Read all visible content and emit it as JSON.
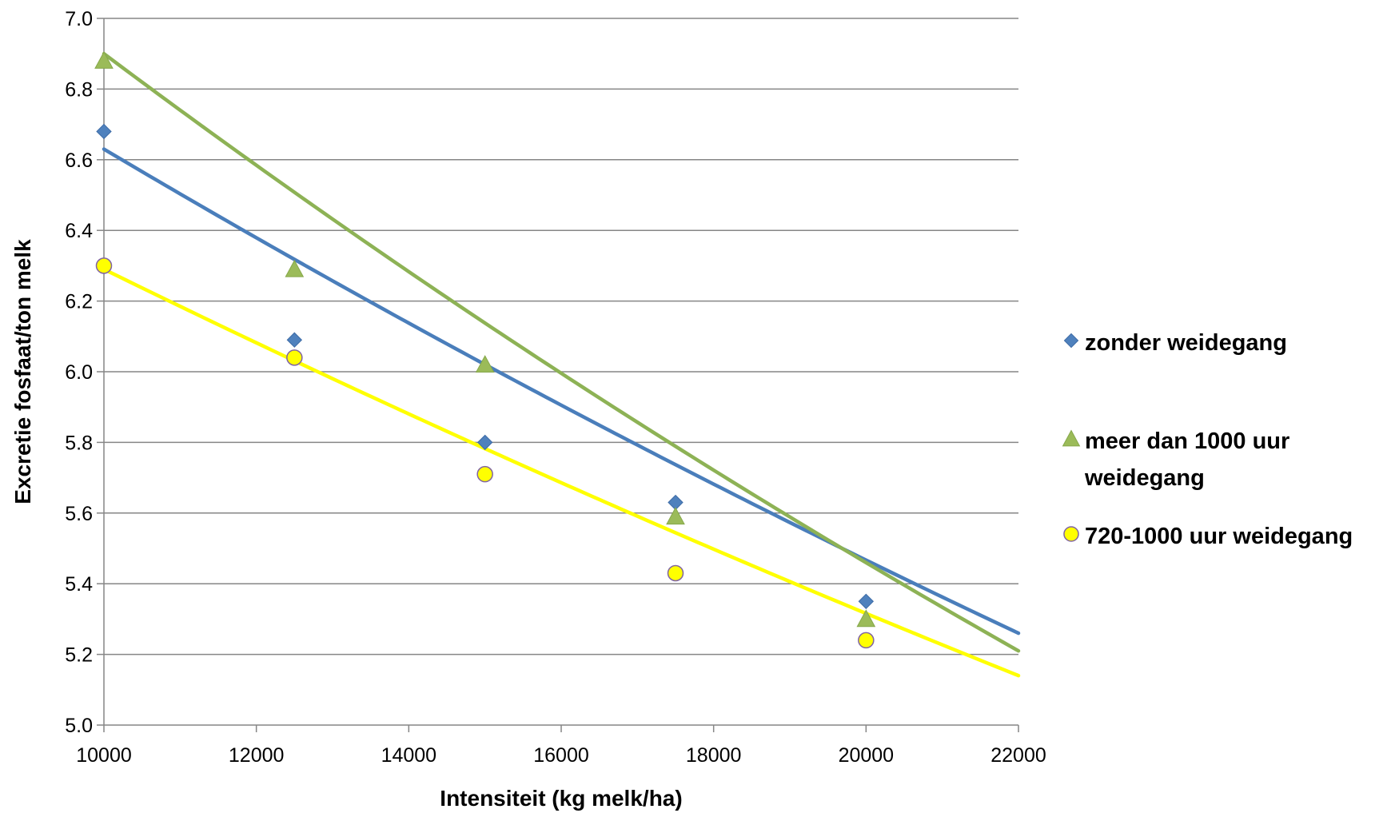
{
  "chart_data": {
    "type": "scatter",
    "title": "",
    "xlabel": "Intensiteit (kg melk/ha)",
    "ylabel": "Excretie fosfaat/ton melk",
    "xlim": [
      10000,
      22000
    ],
    "ylim": [
      5.0,
      7.0
    ],
    "x_ticks": [
      "10000",
      "12000",
      "14000",
      "16000",
      "18000",
      "20000",
      "22000"
    ],
    "y_ticks": [
      "5.0",
      "5.2",
      "5.4",
      "5.6",
      "5.8",
      "6.0",
      "6.2",
      "6.4",
      "6.6",
      "6.8",
      "7.0"
    ],
    "grid": "horizontal",
    "legend_position": "right",
    "series": [
      {
        "name": "zonder weidegang",
        "marker": "diamond",
        "color": "#4F81BD",
        "trend_color": "#4A7EBB",
        "x": [
          10000,
          12500,
          15000,
          17500,
          20000
        ],
        "y": [
          6.68,
          6.09,
          5.8,
          5.63,
          5.35
        ],
        "trendline": {
          "x": [
            10000,
            22000
          ],
          "y": [
            6.63,
            5.26
          ]
        }
      },
      {
        "name": "meer dan 1000 uur weidegang",
        "legend_lines": [
          "meer dan 1000 uur",
          "weidegang"
        ],
        "marker": "triangle",
        "color": "#9BBB59",
        "trend_color": "#8DB255",
        "x": [
          10000,
          12500,
          15000,
          17500,
          20000
        ],
        "y": [
          6.88,
          6.29,
          6.02,
          5.59,
          5.3
        ],
        "trendline": {
          "x": [
            10000,
            22000
          ],
          "y": [
            6.9,
            5.21
          ]
        }
      },
      {
        "name": "720-1000 uur weidegang",
        "marker": "circle",
        "color": "#FFFF00",
        "trend_color": "#FFFF00",
        "marker_border": "#8064A2",
        "x": [
          10000,
          12500,
          15000,
          17500,
          20000
        ],
        "y": [
          6.3,
          6.04,
          5.71,
          5.43,
          5.24
        ],
        "trendline": {
          "x": [
            10000,
            22000
          ],
          "y": [
            6.29,
            5.14
          ]
        }
      }
    ]
  }
}
